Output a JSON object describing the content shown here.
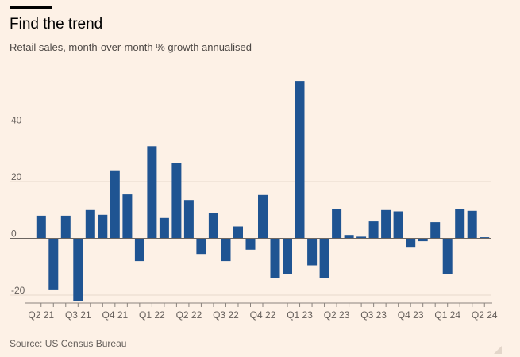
{
  "header": {
    "title": "Find the trend",
    "subtitle": "Retail sales, month-over-month % growth annualised"
  },
  "footer": {
    "source": "Source: US Census Bureau"
  },
  "colors": {
    "bar": "#1f5492",
    "grid": "#e6d9cc",
    "axis": "#8a837d",
    "background": "#fdf1e6"
  },
  "chart_data": {
    "type": "bar",
    "title": "Find the trend",
    "subtitle": "Retail sales, month-over-month % growth annualised",
    "xlabel": "",
    "ylabel": "",
    "ylim": [
      -21,
      58
    ],
    "yticks": [
      -20,
      0,
      20,
      40
    ],
    "grid": true,
    "legend": "none",
    "categories": [
      "Apr 2021",
      "May 2021",
      "Jun 2021",
      "Jul 2021",
      "Aug 2021",
      "Sep 2021",
      "Oct 2021",
      "Nov 2021",
      "Dec 2021",
      "Jan 2022",
      "Feb 2022",
      "Mar 2022",
      "Apr 2022",
      "May 2022",
      "Jun 2022",
      "Jul 2022",
      "Aug 2022",
      "Sep 2022",
      "Oct 2022",
      "Nov 2022",
      "Dec 2022",
      "Jan 2023",
      "Feb 2023",
      "Mar 2023",
      "Apr 2023",
      "May 2023",
      "Jun 2023",
      "Jul 2023",
      "Aug 2023",
      "Sep 2023",
      "Oct 2023",
      "Nov 2023",
      "Dec 2023",
      "Jan 2024",
      "Feb 2024",
      "Mar 2024",
      "Apr 2024"
    ],
    "values": [
      8,
      -18,
      8,
      -22,
      10,
      8.3,
      24,
      15.5,
      -8,
      32.5,
      7.2,
      26.5,
      13.5,
      -5.5,
      8.8,
      -8,
      4.2,
      -4,
      15.3,
      -14,
      -12.5,
      55.5,
      -9.5,
      -14,
      10.2,
      1.2,
      0.6,
      6,
      10,
      9.5,
      -3,
      -1,
      5.7,
      -12.5,
      10.2,
      9.7,
      0.4
    ],
    "tick_labels": [
      {
        "label": "Q2 21",
        "index": 0
      },
      {
        "label": "Q3 21",
        "index": 3
      },
      {
        "label": "Q4 21",
        "index": 6
      },
      {
        "label": "Q1 22",
        "index": 9
      },
      {
        "label": "Q2 22",
        "index": 12
      },
      {
        "label": "Q3 22",
        "index": 15
      },
      {
        "label": "Q4 22",
        "index": 18
      },
      {
        "label": "Q1 23",
        "index": 21
      },
      {
        "label": "Q2 23",
        "index": 24
      },
      {
        "label": "Q3 23",
        "index": 27
      },
      {
        "label": "Q4 23",
        "index": 30
      },
      {
        "label": "Q1 24",
        "index": 33
      },
      {
        "label": "Q2 24",
        "index": 36
      }
    ]
  }
}
